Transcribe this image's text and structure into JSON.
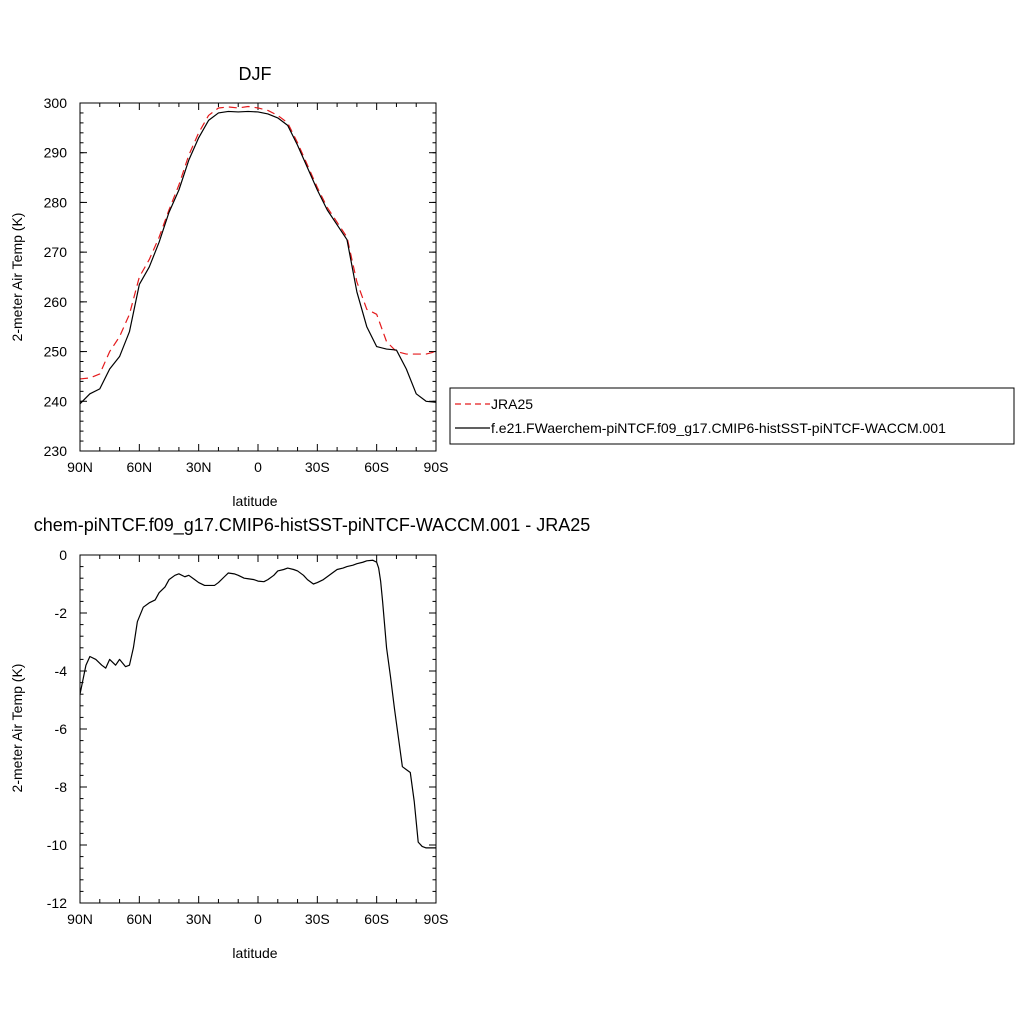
{
  "chart_data": [
    {
      "type": "line",
      "title": "DJF",
      "xlabel": "latitude",
      "ylabel": "2-meter Air Temp (K)",
      "xlim": [
        90,
        -90
      ],
      "ylim": [
        230,
        300
      ],
      "xticks": [
        90,
        60,
        30,
        0,
        -30,
        -60,
        -90
      ],
      "xtick_labels": [
        "90N",
        "60N",
        "30N",
        "0",
        "30S",
        "60S",
        "90S"
      ],
      "yticks": [
        230,
        240,
        250,
        260,
        270,
        280,
        290,
        300
      ],
      "ytick_labels": [
        "230",
        "240",
        "250",
        "260",
        "270",
        "280",
        "290",
        "300"
      ],
      "legend_placement": "right",
      "series": [
        {
          "name": "JRA25",
          "color": "#e41a1c",
          "dash": "dashed",
          "x": [
            90,
            85,
            80,
            75,
            70,
            65,
            60,
            55,
            50,
            45,
            40,
            35,
            30,
            25,
            20,
            15,
            10,
            5,
            0,
            -5,
            -10,
            -15,
            -20,
            -25,
            -30,
            -35,
            -40,
            -45,
            -50,
            -55,
            -60,
            -65,
            -70,
            -75,
            -80,
            -85,
            -90
          ],
          "y": [
            244.5,
            244.7,
            245.5,
            250.0,
            253.0,
            257.5,
            265.0,
            268.5,
            273.0,
            278.5,
            283.5,
            289.5,
            294.0,
            297.5,
            299.0,
            299.2,
            299.0,
            299.3,
            299.0,
            298.5,
            297.5,
            296.0,
            292.0,
            287.5,
            283.0,
            279.0,
            276.0,
            273.0,
            264.0,
            258.5,
            257.5,
            252.0,
            250.0,
            249.5,
            249.5,
            249.5,
            250.0
          ]
        },
        {
          "name": "f.e21.FWaerchem-piNTCF.f09_g17.CMIP6-histSST-piNTCF-WACCM.001",
          "color": "#000000",
          "dash": "solid",
          "x": [
            90,
            85,
            80,
            75,
            70,
            65,
            60,
            55,
            50,
            45,
            40,
            35,
            30,
            25,
            20,
            15,
            10,
            5,
            0,
            -5,
            -10,
            -15,
            -20,
            -25,
            -30,
            -35,
            -40,
            -45,
            -50,
            -55,
            -60,
            -65,
            -70,
            -75,
            -80,
            -85,
            -90
          ],
          "y": [
            239.5,
            241.5,
            242.5,
            246.5,
            249.0,
            254.0,
            263.5,
            267.0,
            272.0,
            278.0,
            282.5,
            288.5,
            293.0,
            296.5,
            298.0,
            298.3,
            298.2,
            298.3,
            298.2,
            297.8,
            297.0,
            295.5,
            291.5,
            287.0,
            282.5,
            278.5,
            275.5,
            272.5,
            262.0,
            255.0,
            251.0,
            250.5,
            250.3,
            246.5,
            241.5,
            240.0,
            239.8
          ]
        }
      ]
    },
    {
      "type": "line",
      "title": "chem-piNTCF.f09_g17.CMIP6-histSST-piNTCF-WACCM.001 - JRA25",
      "xlabel": "latitude",
      "ylabel": "2-meter Air Temp (K)",
      "xlim": [
        90,
        -90
      ],
      "ylim": [
        -12,
        0
      ],
      "xticks": [
        90,
        60,
        30,
        0,
        -30,
        -60,
        -90
      ],
      "xtick_labels": [
        "90N",
        "60N",
        "30N",
        "0",
        "30S",
        "60S",
        "90S"
      ],
      "yticks": [
        -12,
        -10,
        -8,
        -6,
        -4,
        -2,
        0
      ],
      "ytick_labels": [
        "-12",
        "-10",
        "-8",
        "-6",
        "-4",
        "-2",
        "0"
      ],
      "series": [
        {
          "color": "#000000",
          "dash": "solid",
          "x": [
            90,
            87,
            85,
            82,
            79,
            77,
            75,
            72,
            70,
            67,
            65,
            63,
            61,
            58,
            55,
            52,
            50,
            47,
            45,
            42,
            40,
            37,
            35,
            32,
            30,
            27,
            25,
            22,
            20,
            17,
            15,
            12,
            10,
            7,
            5,
            2,
            0,
            -3,
            -5,
            -8,
            -10,
            -13,
            -15,
            -18,
            -20,
            -23,
            -25,
            -28,
            -30,
            -33,
            -35,
            -38,
            -40,
            -43,
            -45,
            -48,
            -50,
            -53,
            -55,
            -58,
            -60,
            -61,
            -62,
            -63,
            -64,
            -65,
            -67,
            -69,
            -71,
            -73,
            -75,
            -77,
            -79,
            -81,
            -83,
            -85,
            -87,
            -90
          ],
          "y": [
            -4.8,
            -3.8,
            -3.5,
            -3.6,
            -3.8,
            -3.9,
            -3.6,
            -3.8,
            -3.6,
            -3.85,
            -3.8,
            -3.2,
            -2.3,
            -1.8,
            -1.65,
            -1.55,
            -1.3,
            -1.1,
            -0.85,
            -0.7,
            -0.65,
            -0.75,
            -0.7,
            -0.85,
            -0.95,
            -1.05,
            -1.05,
            -1.05,
            -0.95,
            -0.75,
            -0.62,
            -0.65,
            -0.7,
            -0.8,
            -0.82,
            -0.85,
            -0.9,
            -0.92,
            -0.85,
            -0.7,
            -0.55,
            -0.5,
            -0.45,
            -0.5,
            -0.55,
            -0.7,
            -0.85,
            -1.0,
            -0.95,
            -0.85,
            -0.75,
            -0.6,
            -0.5,
            -0.45,
            -0.4,
            -0.35,
            -0.3,
            -0.25,
            -0.2,
            -0.18,
            -0.25,
            -0.45,
            -0.9,
            -1.6,
            -2.4,
            -3.2,
            -4.2,
            -5.3,
            -6.3,
            -7.3,
            -7.4,
            -7.5,
            -8.5,
            -9.9,
            -10.05,
            -10.1,
            -10.1,
            -10.1
          ]
        }
      ]
    }
  ]
}
